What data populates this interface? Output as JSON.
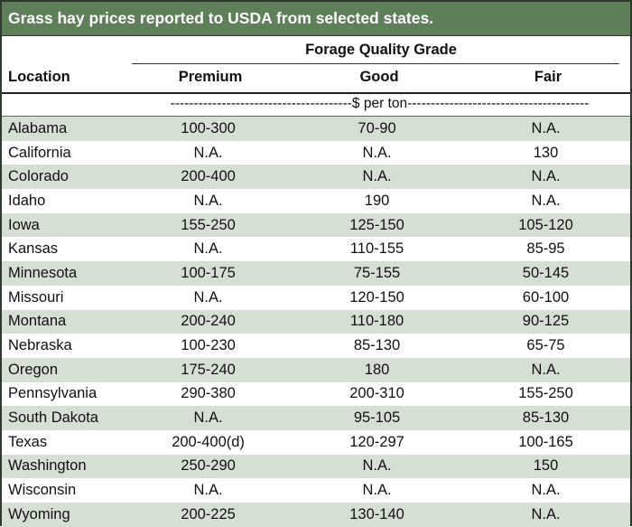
{
  "title": "Grass hay prices reported to USDA from selected states.",
  "header": {
    "group_label": "Forage Quality Grade",
    "location_label": "Location",
    "columns": [
      "Premium",
      "Good",
      "Fair"
    ],
    "units": "---------------------------------------$ per ton---------------------------------------"
  },
  "rows": [
    {
      "location": "Alabama",
      "premium": "100-300",
      "good": "70-90",
      "fair": "N.A."
    },
    {
      "location": "California",
      "premium": "N.A.",
      "good": "N.A.",
      "fair": "130"
    },
    {
      "location": "Colorado",
      "premium": "200-400",
      "good": "N.A.",
      "fair": "N.A."
    },
    {
      "location": "Idaho",
      "premium": "N.A.",
      "good": "190",
      "fair": "N.A."
    },
    {
      "location": "Iowa",
      "premium": "155-250",
      "good": "125-150",
      "fair": "105-120"
    },
    {
      "location": "Kansas",
      "premium": "N.A.",
      "good": "110-155",
      "fair": "85-95"
    },
    {
      "location": "Minnesota",
      "premium": "100-175",
      "good": "75-155",
      "fair": "50-145"
    },
    {
      "location": "Missouri",
      "premium": "N.A.",
      "good": "120-150",
      "fair": "60-100"
    },
    {
      "location": "Montana",
      "premium": "200-240",
      "good": "110-180",
      "fair": "90-125"
    },
    {
      "location": "Nebraska",
      "premium": "100-230",
      "good": "85-130",
      "fair": "65-75"
    },
    {
      "location": "Oregon",
      "premium": "175-240",
      "good": "180",
      "fair": "N.A."
    },
    {
      "location": "Pennsylvania",
      "premium": "290-380",
      "good": "200-310",
      "fair": "155-250"
    },
    {
      "location": "South Dakota",
      "premium": "N.A.",
      "good": "95-105",
      "fair": "85-130"
    },
    {
      "location": "Texas",
      "premium": "200-400(d)",
      "good": "120-297",
      "fair": "100-165"
    },
    {
      "location": "Washington",
      "premium": "250-290",
      "good": "N.A.",
      "fair": "150"
    },
    {
      "location": "Wisconsin",
      "premium": "N.A.",
      "good": "N.A.",
      "fair": "N.A."
    },
    {
      "location": "Wyoming",
      "premium": "200-225",
      "good": "130-140",
      "fair": "N.A."
    }
  ],
  "colors": {
    "title_bg": "#5f7f5a",
    "row_shade": "#d6dfd4"
  }
}
